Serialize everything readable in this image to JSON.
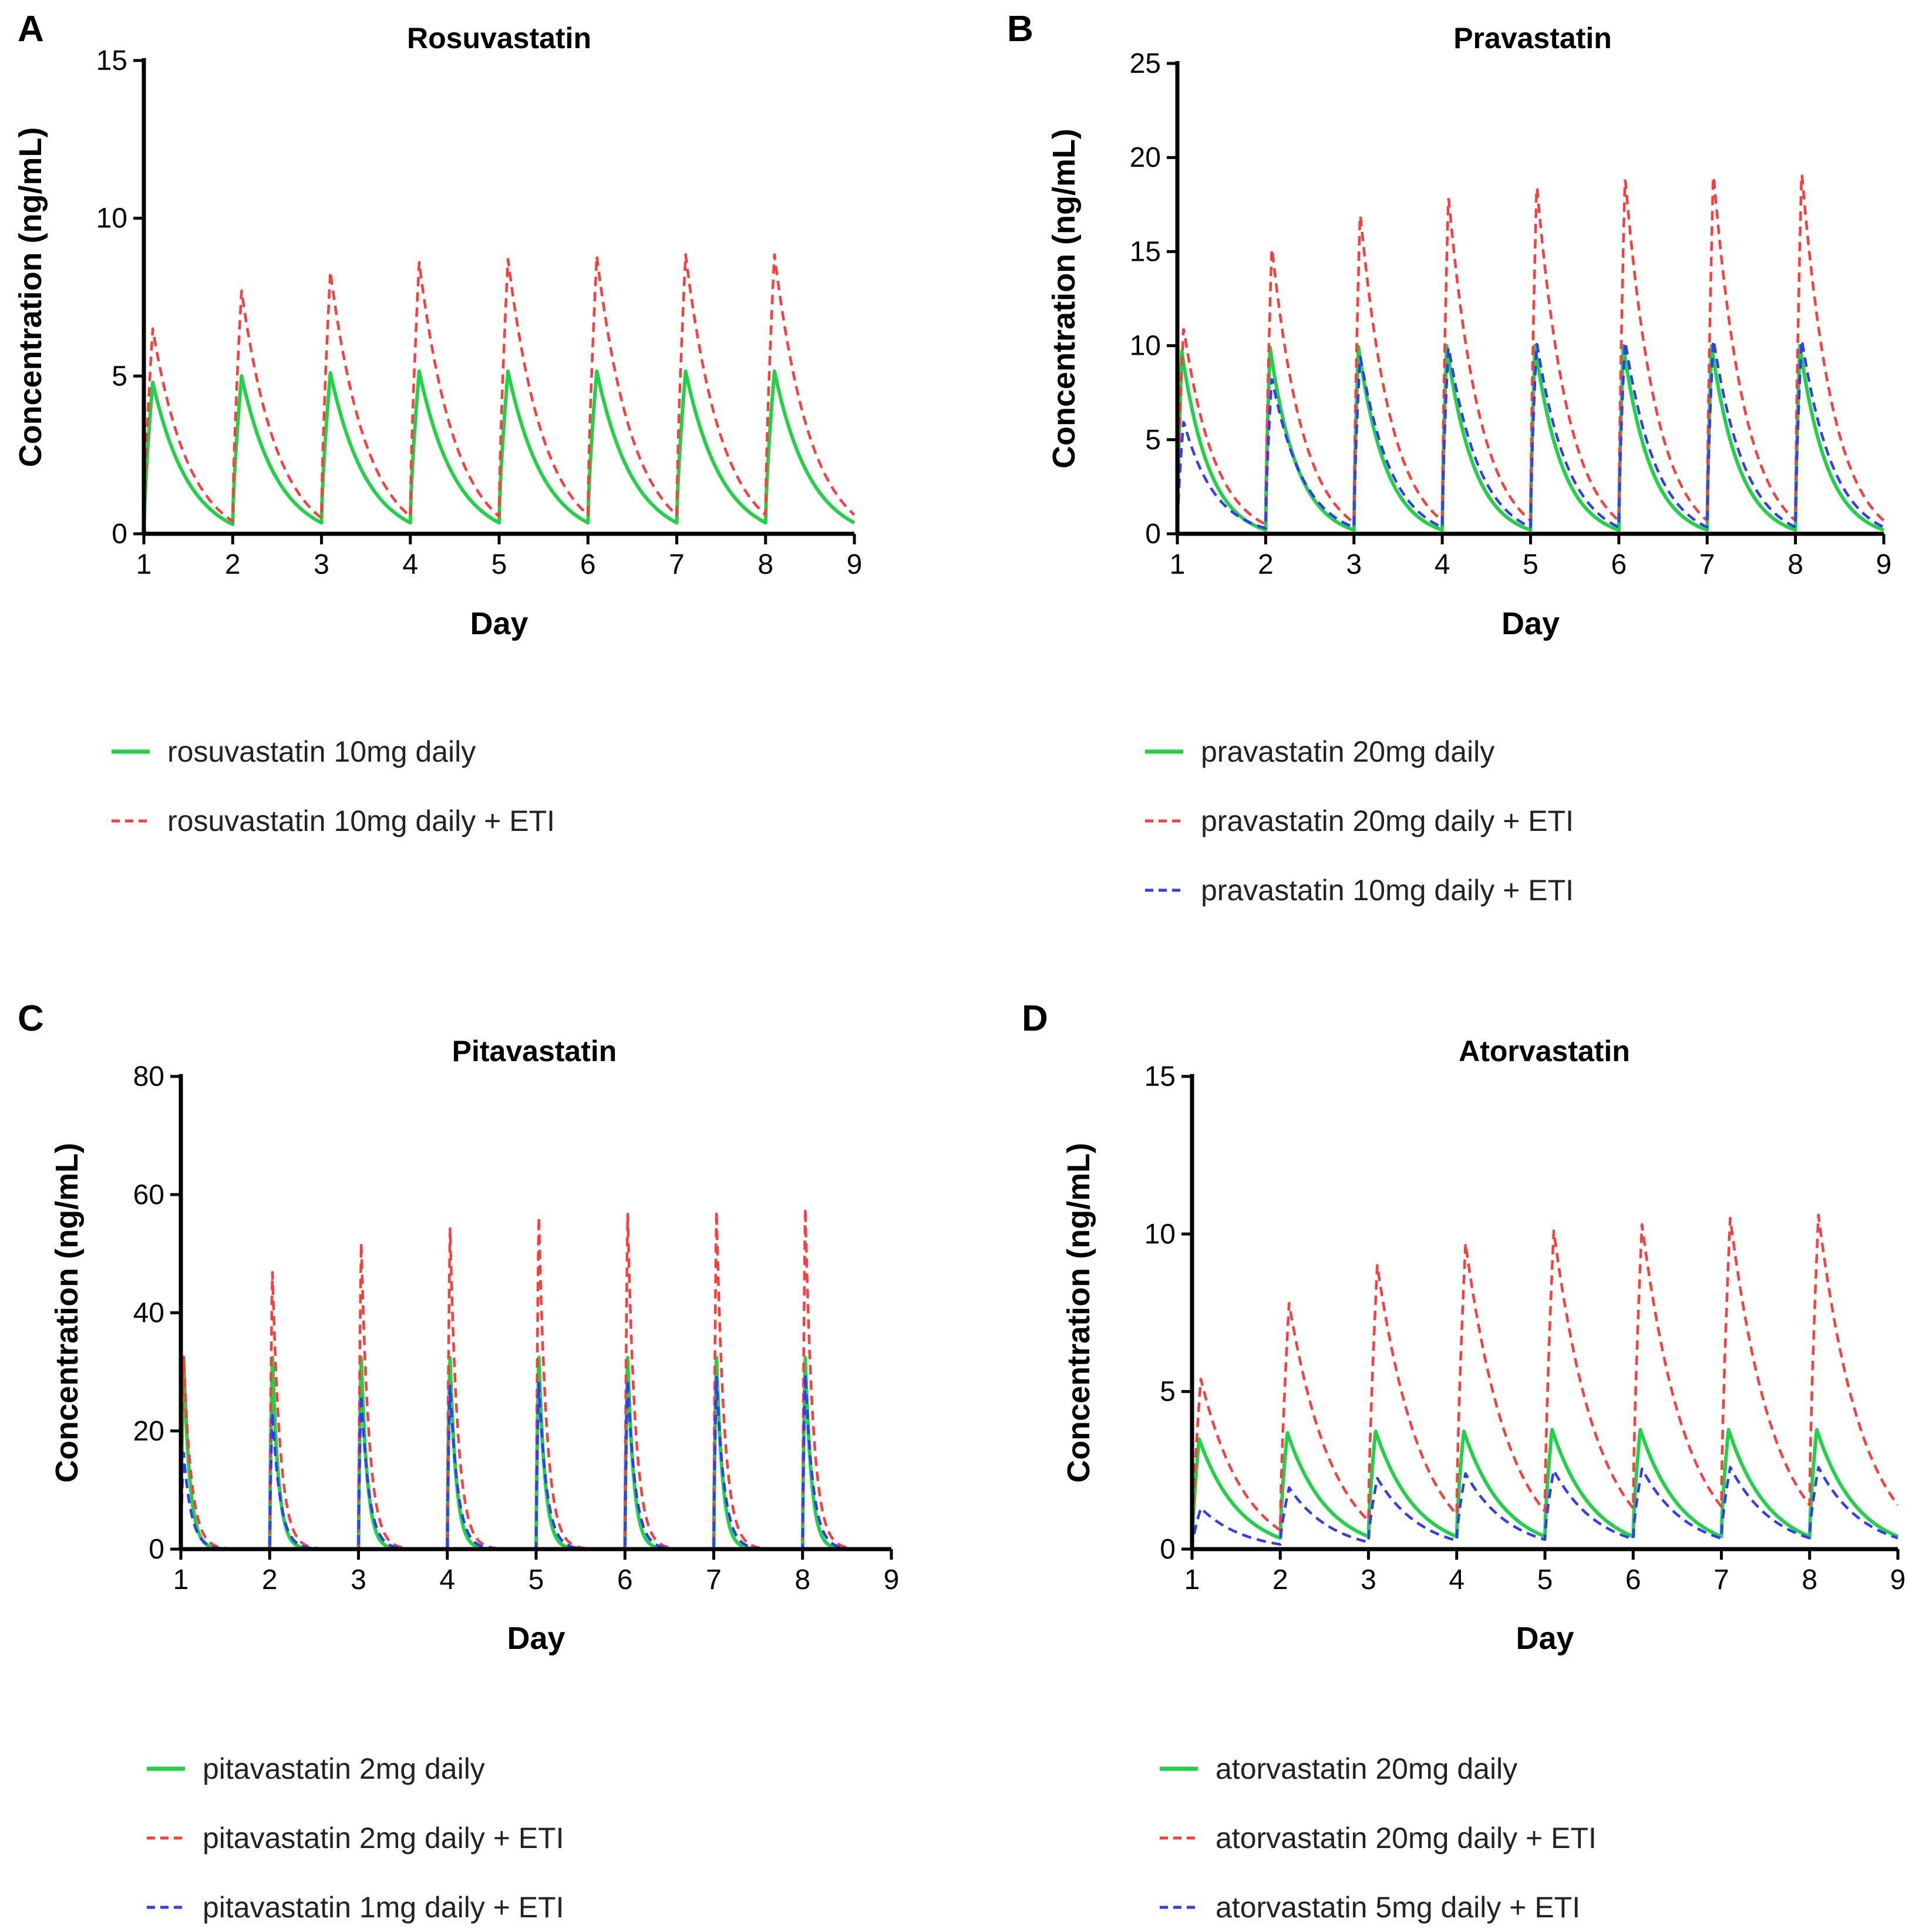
{
  "colors": {
    "green": "#1fd246",
    "red": "#ff3b3b",
    "blue": "#2f3cff"
  },
  "chart_data": [
    {
      "type": "line",
      "panel": "A",
      "title": "Rosuvastatin",
      "xlabel": "Day",
      "ylabel": "Concentration (ng/mL)",
      "xlim": [
        1,
        9
      ],
      "ylim": [
        0,
        15
      ],
      "xticks": [
        1,
        2,
        3,
        4,
        5,
        6,
        7,
        8,
        9
      ],
      "yticks": [
        0,
        5,
        10,
        15
      ],
      "doses": [
        1,
        2,
        3,
        4,
        5,
        6,
        7,
        8
      ],
      "series": [
        {
          "name": "rosuvastatin 10mg daily",
          "style": "solid",
          "color": "#1fd246",
          "peaks": [
            4.8,
            5.0,
            5.1,
            5.15,
            5.15,
            5.15,
            5.15,
            5.15
          ],
          "troughs": [
            0.3,
            0.35,
            0.35,
            0.35,
            0.35,
            0.35,
            0.35,
            0.35
          ],
          "tmax": 0.1,
          "shape": 2.2
        },
        {
          "name": "rosuvastatin 10mg daily + ETI",
          "style": "dashed",
          "color": "#ff3b3b",
          "peaks": [
            6.5,
            7.7,
            8.3,
            8.6,
            8.7,
            8.8,
            8.85,
            8.85
          ],
          "troughs": [
            0.4,
            0.5,
            0.55,
            0.55,
            0.6,
            0.6,
            0.6,
            0.6
          ],
          "tmax": 0.1,
          "shape": 2.2
        }
      ]
    },
    {
      "type": "line",
      "panel": "B",
      "title": "Pravastatin",
      "xlabel": "Day",
      "ylabel": "Concentration (ng/mL)",
      "xlim": [
        1,
        9
      ],
      "ylim": [
        0,
        25
      ],
      "xticks": [
        1,
        2,
        3,
        4,
        5,
        6,
        7,
        8,
        9
      ],
      "yticks": [
        0,
        5,
        10,
        15,
        20,
        25
      ],
      "doses": [
        1,
        2,
        3,
        4,
        5,
        6,
        7,
        8
      ],
      "series": [
        {
          "name": "pravastatin 20mg daily",
          "style": "solid",
          "color": "#1fd246",
          "peaks": [
            9.7,
            9.9,
            9.95,
            10.0,
            10.0,
            10.0,
            10.0,
            10.0
          ],
          "troughs": [
            0.2,
            0.2,
            0.2,
            0.2,
            0.2,
            0.2,
            0.2,
            0.2
          ],
          "tmax": 0.05,
          "shape": 3.0
        },
        {
          "name": "pravastatin 20mg daily + ETI",
          "style": "dashed",
          "color": "#ff3b3b",
          "peaks": [
            11.0,
            15.3,
            17.1,
            18.0,
            18.6,
            19.0,
            19.2,
            19.3
          ],
          "troughs": [
            0.5,
            0.6,
            0.7,
            0.7,
            0.7,
            0.7,
            0.7,
            0.7
          ],
          "tmax": 0.07,
          "shape": 2.6
        },
        {
          "name": "pravastatin 10mg daily + ETI",
          "style": "dashed",
          "color": "#2f3cff",
          "peaks": [
            6.0,
            8.3,
            9.5,
            10.0,
            10.2,
            10.3,
            10.4,
            10.4
          ],
          "troughs": [
            0.3,
            0.35,
            0.35,
            0.35,
            0.35,
            0.35,
            0.35,
            0.35
          ],
          "tmax": 0.07,
          "shape": 2.6
        }
      ]
    },
    {
      "type": "line",
      "panel": "C",
      "title": "Pitavastatin",
      "xlabel": "Day",
      "ylabel": "Concentration (ng/mL)",
      "xlim": [
        1,
        9
      ],
      "ylim": [
        0,
        80
      ],
      "xticks": [
        1,
        2,
        3,
        4,
        5,
        6,
        7,
        8,
        9
      ],
      "yticks": [
        0,
        20,
        40,
        60,
        80
      ],
      "doses": [
        1,
        2,
        3,
        4,
        5,
        6,
        7,
        8
      ],
      "series": [
        {
          "name": "pitavastatin 2mg daily",
          "style": "solid",
          "color": "#1fd246",
          "peaks": [
            33,
            33,
            33,
            33,
            33,
            33,
            33,
            33
          ],
          "troughs": [
            0,
            0,
            0,
            0,
            0,
            0,
            0,
            0
          ],
          "tmax": 0.03,
          "shape": 14.0
        },
        {
          "name": "pitavastatin 2mg daily + ETI",
          "style": "dashed",
          "color": "#ff3b3b",
          "peaks": [
            33,
            47.5,
            52.5,
            55,
            57,
            57.5,
            58,
            58.5
          ],
          "troughs": [
            0,
            0,
            0,
            0,
            0,
            0,
            0,
            0
          ],
          "tmax": 0.03,
          "shape": 11.0
        },
        {
          "name": "pitavastatin 1mg daily + ETI",
          "style": "dashed",
          "color": "#2f3cff",
          "peaks": [
            16.5,
            23.5,
            26.5,
            28,
            28.5,
            29,
            29.5,
            30
          ],
          "troughs": [
            0,
            0,
            0,
            0,
            0,
            0,
            0,
            0
          ],
          "tmax": 0.03,
          "shape": 11.0
        }
      ]
    },
    {
      "type": "line",
      "panel": "D",
      "title": "Atorvastatin",
      "xlabel": "Day",
      "ylabel": "Concentration (ng/mL)",
      "xlim": [
        1,
        9
      ],
      "ylim": [
        0,
        15
      ],
      "xticks": [
        1,
        2,
        3,
        4,
        5,
        6,
        7,
        8,
        9
      ],
      "yticks": [
        0,
        5,
        10,
        15
      ],
      "doses": [
        1,
        2,
        3,
        4,
        5,
        6,
        7,
        8
      ],
      "series": [
        {
          "name": "atorvastatin 20mg daily",
          "style": "solid",
          "color": "#1fd246",
          "peaks": [
            3.5,
            3.7,
            3.75,
            3.75,
            3.8,
            3.8,
            3.8,
            3.8
          ],
          "troughs": [
            0.35,
            0.4,
            0.4,
            0.4,
            0.4,
            0.4,
            0.4,
            0.4
          ],
          "tmax": 0.08,
          "shape": 2.0
        },
        {
          "name": "atorvastatin 20mg daily + ETI",
          "style": "dashed",
          "color": "#ff3b3b",
          "peaks": [
            5.4,
            7.8,
            9.0,
            9.7,
            10.1,
            10.3,
            10.5,
            10.6
          ],
          "troughs": [
            0.6,
            0.9,
            1.1,
            1.2,
            1.3,
            1.35,
            1.4,
            1.4
          ],
          "tmax": 0.1,
          "shape": 1.8
        },
        {
          "name": "atorvastatin 5mg daily + ETI",
          "style": "dashed",
          "color": "#2f3cff",
          "peaks": [
            1.3,
            1.95,
            2.25,
            2.4,
            2.5,
            2.55,
            2.6,
            2.6
          ],
          "troughs": [
            0.15,
            0.22,
            0.27,
            0.3,
            0.32,
            0.34,
            0.35,
            0.35
          ],
          "tmax": 0.1,
          "shape": 1.8
        }
      ]
    }
  ]
}
